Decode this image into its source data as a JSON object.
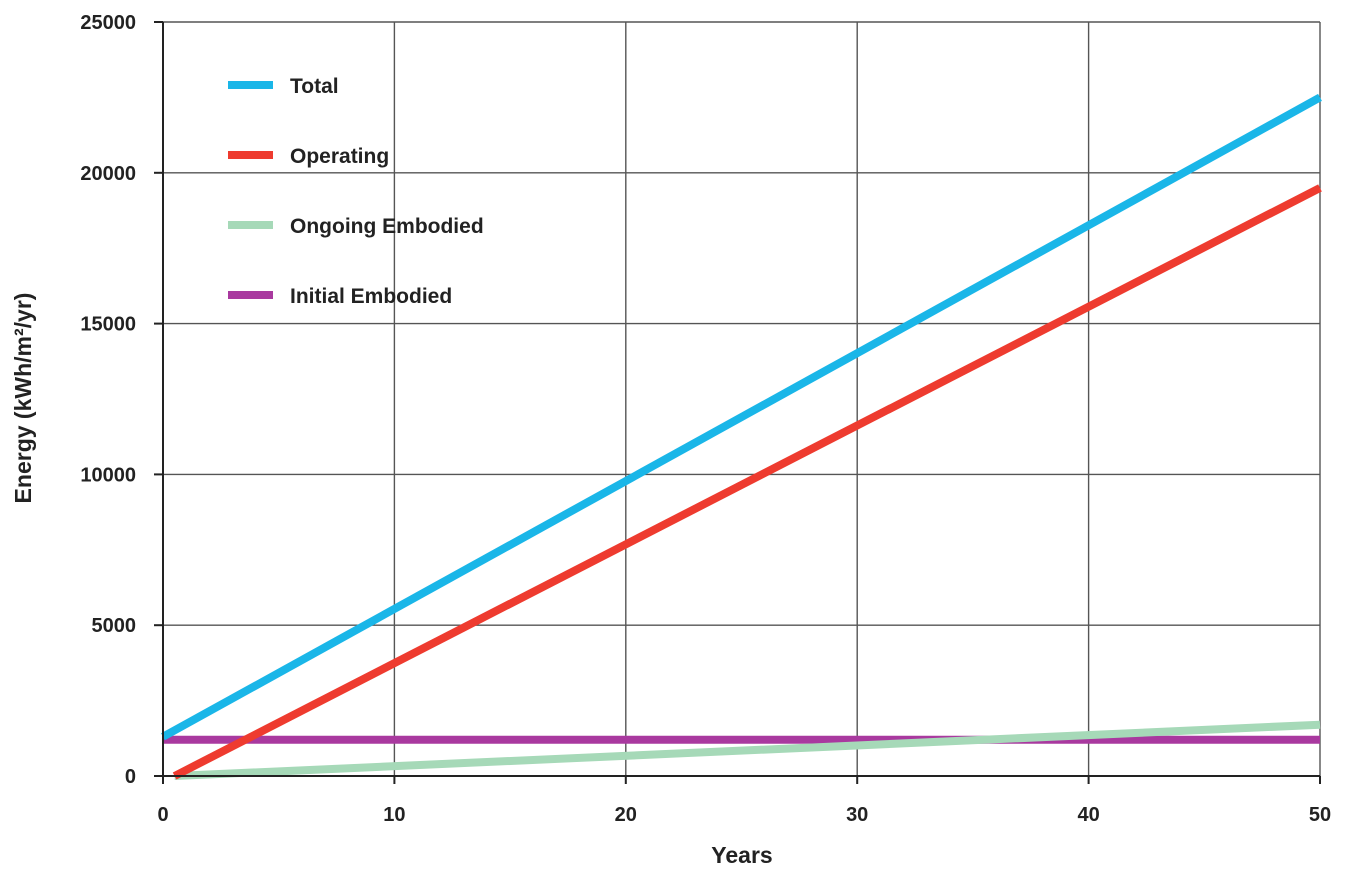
{
  "chart_data": {
    "type": "line",
    "xlabel": "Years",
    "ylabel": "Energy (kWh/m²/yr)",
    "xlim": [
      0,
      50
    ],
    "ylim": [
      0,
      25000
    ],
    "xticks": [
      0,
      10,
      20,
      30,
      40,
      50
    ],
    "yticks": [
      0,
      5000,
      10000,
      15000,
      20000,
      25000
    ],
    "grid": true,
    "legend_position": "top-left",
    "series": [
      {
        "name": "Total",
        "color": "#1ab6e8",
        "x": [
          0,
          50
        ],
        "y": [
          1300,
          22500
        ]
      },
      {
        "name": "Operating",
        "color": "#ee3b2f",
        "x": [
          0.5,
          50
        ],
        "y": [
          0,
          19500
        ]
      },
      {
        "name": "Ongoing Embodied",
        "color": "#a6d9b8",
        "x": [
          0.5,
          50
        ],
        "y": [
          0,
          1700
        ]
      },
      {
        "name": "Initial Embodied",
        "color": "#a9399f",
        "x": [
          0,
          50
        ],
        "y": [
          1200,
          1200
        ]
      }
    ]
  }
}
